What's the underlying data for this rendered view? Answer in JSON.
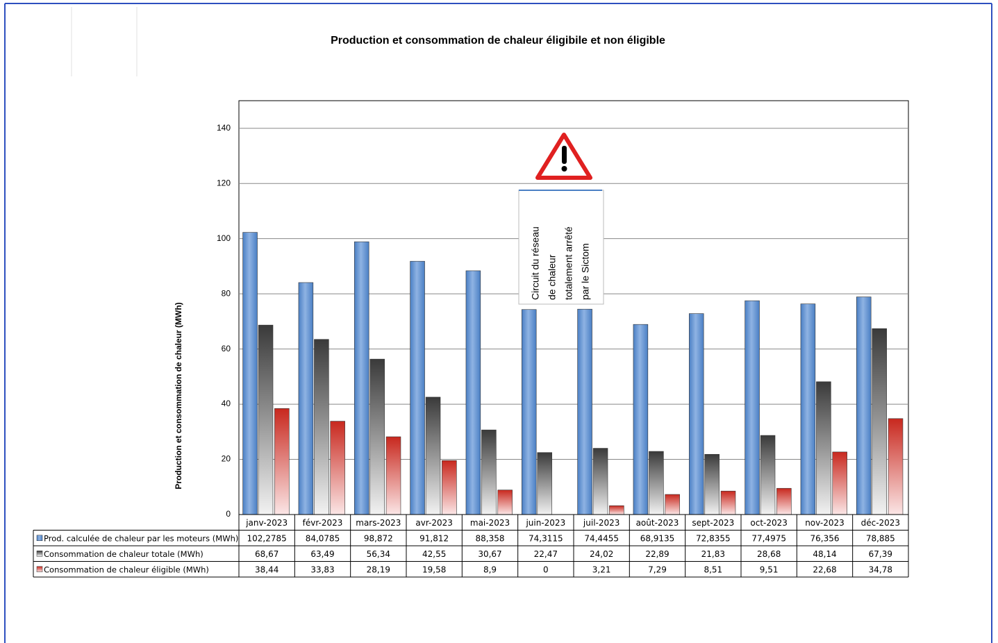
{
  "chart_data": {
    "type": "bar",
    "title": "Production et consommation de chaleur éligibile et non éligible",
    "y_label": "Production  et consommation de chaleur  (MWh)",
    "annotation": [
      "Circuit du réseau",
      "de chaleur",
      "totalement arrêté",
      "par le Sictom"
    ],
    "categories": [
      "janv-2023",
      "févr-2023",
      "mars-2023",
      "avr-2023",
      "mai-2023",
      "juin-2023",
      "juil-2023",
      "août-2023",
      "sept-2023",
      "oct-2023",
      "nov-2023",
      "déc-2023"
    ],
    "series": [
      {
        "name": "Prod. calculée de chaleur par les moteurs (MWh)",
        "color": "#4a7fc4",
        "values": [
          102.2785,
          84.0785,
          98.872,
          91.812,
          88.358,
          74.3115,
          74.4455,
          68.9135,
          72.8355,
          77.4975,
          76.356,
          78.885
        ],
        "value_labels": [
          "102,2785",
          "84,0785",
          "98,872",
          "91,812",
          "88,358",
          "74,3115",
          "74,4455",
          "68,9135",
          "72,8355",
          "77,4975",
          "76,356",
          "78,885"
        ]
      },
      {
        "name": "Consommation de chaleur totale (MWh)",
        "color": "#3a3a3a",
        "values": [
          68.67,
          63.49,
          56.34,
          42.55,
          30.67,
          22.47,
          24.02,
          22.89,
          21.83,
          28.68,
          48.14,
          67.39
        ],
        "value_labels": [
          "68,67",
          "63,49",
          "56,34",
          "42,55",
          "30,67",
          "22,47",
          "24,02",
          "22,89",
          "21,83",
          "28,68",
          "48,14",
          "67,39"
        ]
      },
      {
        "name": "Consommation de chaleur éligible (MWh)",
        "color": "#c8281e",
        "values": [
          38.44,
          33.83,
          28.19,
          19.58,
          8.9,
          0,
          3.21,
          7.29,
          8.51,
          9.51,
          22.68,
          34.78
        ],
        "value_labels": [
          "38,44",
          "33,83",
          "28,19",
          "19,58",
          "8,9",
          "0",
          "3,21",
          "7,29",
          "8,51",
          "9,51",
          "22,68",
          "34,78"
        ]
      }
    ],
    "ylim": [
      0,
      150
    ],
    "yticks": [
      0,
      20,
      40,
      60,
      80,
      100,
      120,
      140
    ],
    "grid": true
  }
}
